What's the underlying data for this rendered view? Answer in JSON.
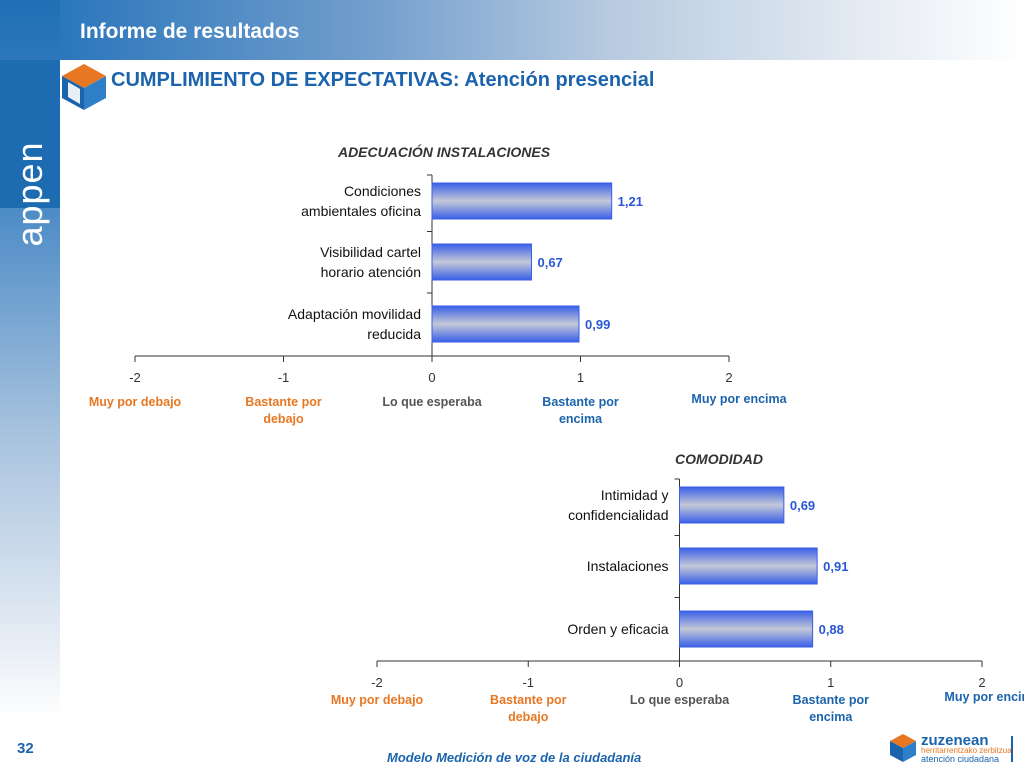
{
  "header": {
    "title": "Informe de resultados"
  },
  "logo": {
    "text": "appen"
  },
  "slide": {
    "title": "CUMPLIMIENTO DE EXPECTATIVAS: Atención presencial"
  },
  "footer": {
    "page_number": "32",
    "caption": "Modelo Medición de voz de la ciudadanía",
    "brand_name": "zuzenean",
    "brand_line1": "herritarrentzako zerbitzua",
    "brand_line2": "atención ciudadana"
  },
  "colors": {
    "primary_blue": "#1b64ad",
    "bar_blue": "#3c63e8",
    "value_label": "#2a57d6",
    "orange": "#e87722",
    "neutral_label": "#555555",
    "axis": "#333333"
  },
  "chart_data": [
    {
      "type": "bar",
      "orientation": "horizontal",
      "title": "ADECUACIÓN INSTALACIONES",
      "categories": [
        [
          "Condiciones",
          "ambientales oficina"
        ],
        [
          "Visibilidad cartel",
          "horario atención"
        ],
        [
          "Adaptación movilidad",
          "reducida"
        ]
      ],
      "values": [
        1.21,
        0.67,
        0.99
      ],
      "value_labels": [
        "1,21",
        "0,67",
        "0,99"
      ],
      "xlim": [
        -2,
        2
      ],
      "ticks": [
        -2,
        -1,
        0,
        1,
        2
      ],
      "tick_labels": [
        "-2",
        "-1",
        "0",
        "1",
        "2"
      ],
      "scale_labels": [
        {
          "lines": [
            "Muy por debajo"
          ],
          "tone": "orange"
        },
        {
          "lines": [
            "Bastante por",
            "debajo"
          ],
          "tone": "orange"
        },
        {
          "lines": [
            "Lo que esperaba"
          ],
          "tone": "neutral"
        },
        {
          "lines": [
            "Bastante por",
            "encima"
          ],
          "tone": "blue"
        },
        {
          "lines": [
            "Muy por encima"
          ],
          "tone": "blue"
        }
      ]
    },
    {
      "type": "bar",
      "orientation": "horizontal",
      "title": "COMODIDAD",
      "categories": [
        [
          "Intimidad y",
          "confidencialidad"
        ],
        [
          "Instalaciones"
        ],
        [
          "Orden y eficacia"
        ]
      ],
      "values": [
        0.69,
        0.91,
        0.88
      ],
      "value_labels": [
        "0,69",
        "0,91",
        "0,88"
      ],
      "xlim": [
        -2,
        2
      ],
      "ticks": [
        -2,
        -1,
        0,
        1,
        2
      ],
      "tick_labels": [
        "-2",
        "-1",
        "0",
        "1",
        "2"
      ],
      "scale_labels": [
        {
          "lines": [
            "Muy por debajo"
          ],
          "tone": "orange"
        },
        {
          "lines": [
            "Bastante por",
            "debajo"
          ],
          "tone": "orange"
        },
        {
          "lines": [
            "Lo que esperaba"
          ],
          "tone": "neutral"
        },
        {
          "lines": [
            "Bastante por",
            "encima"
          ],
          "tone": "blue"
        },
        {
          "lines": [
            "Muy por encima"
          ],
          "tone": "blue"
        }
      ]
    }
  ]
}
